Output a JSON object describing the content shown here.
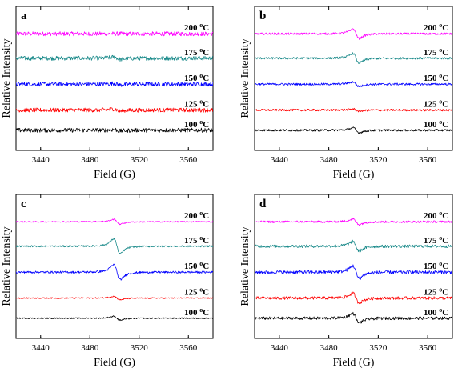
{
  "chart_data": [
    {
      "type": "line",
      "panel_label": "a",
      "xlabel": "Field (G)",
      "ylabel": "Relative Intensity",
      "xlim": [
        3420,
        3580
      ],
      "xticks": [
        3440,
        3480,
        3520,
        3560
      ],
      "x_tick_labels": [
        "3440",
        "3480",
        "3520",
        "3560"
      ],
      "grid": false,
      "series": [
        {
          "name": "200 °C",
          "label_main": "200",
          "color": "#ff00ff",
          "center": 3502,
          "amplitude": 0.0,
          "noise": 1.0
        },
        {
          "name": "175 °C",
          "label_main": "175",
          "color": "#1a8a8a",
          "center": 3502,
          "amplitude": 0.8,
          "noise": 1.0
        },
        {
          "name": "150 °C",
          "label_main": "150",
          "color": "#0000ff",
          "center": 3502,
          "amplitude": 0.6,
          "noise": 1.0
        },
        {
          "name": "125 °C",
          "label_main": "125",
          "color": "#ff0000",
          "center": 3502,
          "amplitude": 0.8,
          "noise": 1.0
        },
        {
          "name": "100 °C",
          "label_main": "100",
          "color": "#000000",
          "center": 3502,
          "amplitude": 0.5,
          "noise": 1.0
        }
      ]
    },
    {
      "type": "line",
      "panel_label": "b",
      "xlabel": "Field (G)",
      "ylabel": "Relative Intensity",
      "xlim": [
        3420,
        3580
      ],
      "xticks": [
        3440,
        3480,
        3520,
        3560
      ],
      "x_tick_labels": [
        "3440",
        "3480",
        "3520",
        "3560"
      ],
      "grid": false,
      "series": [
        {
          "name": "200 °C",
          "label_main": "200",
          "color": "#ff00ff",
          "center": 3502,
          "amplitude": 3.2,
          "noise": 0.5
        },
        {
          "name": "175 °C",
          "label_main": "175",
          "color": "#1a8a8a",
          "center": 3502,
          "amplitude": 3.2,
          "noise": 0.5
        },
        {
          "name": "150 °C",
          "label_main": "150",
          "color": "#0000ff",
          "center": 3502,
          "amplitude": 1.6,
          "noise": 0.5
        },
        {
          "name": "125 °C",
          "label_main": "125",
          "color": "#ff0000",
          "center": 3502,
          "amplitude": 0.7,
          "noise": 0.5
        },
        {
          "name": "100 °C",
          "label_main": "100",
          "color": "#000000",
          "center": 3502,
          "amplitude": 1.6,
          "noise": 0.5
        }
      ]
    },
    {
      "type": "line",
      "panel_label": "c",
      "xlabel": "Field (G)",
      "ylabel": "Relative Intensity",
      "xlim": [
        3420,
        3580
      ],
      "xticks": [
        3440,
        3480,
        3520,
        3560
      ],
      "x_tick_labels": [
        "3440",
        "3480",
        "3520",
        "3560"
      ],
      "grid": false,
      "series": [
        {
          "name": "200 °C",
          "label_main": "200",
          "color": "#ff00ff",
          "center": 3502,
          "amplitude": 1.6,
          "noise": 0.3
        },
        {
          "name": "175 °C",
          "label_main": "175",
          "color": "#1a8a8a",
          "center": 3502,
          "amplitude": 5.0,
          "noise": 0.4
        },
        {
          "name": "150 °C",
          "label_main": "150",
          "color": "#0000ff",
          "center": 3502,
          "amplitude": 5.0,
          "noise": 0.5
        },
        {
          "name": "125 °C",
          "label_main": "125",
          "color": "#ff0000",
          "center": 3502,
          "amplitude": 1.2,
          "noise": 0.3
        },
        {
          "name": "100 °C",
          "label_main": "100",
          "color": "#000000",
          "center": 3502,
          "amplitude": 1.3,
          "noise": 0.3
        }
      ]
    },
    {
      "type": "line",
      "panel_label": "d",
      "xlabel": "Field (G)",
      "ylabel": "Relative Intensity",
      "xlim": [
        3420,
        3580
      ],
      "xticks": [
        3440,
        3480,
        3520,
        3560
      ],
      "x_tick_labels": [
        "3440",
        "3480",
        "3520",
        "3560"
      ],
      "grid": false,
      "series": [
        {
          "name": "200 °C",
          "label_main": "200",
          "color": "#ff00ff",
          "center": 3502,
          "amplitude": 1.8,
          "noise": 0.5
        },
        {
          "name": "175 °C",
          "label_main": "175",
          "color": "#1a8a8a",
          "center": 3502,
          "amplitude": 3.2,
          "noise": 0.7
        },
        {
          "name": "150 °C",
          "label_main": "150",
          "color": "#0000ff",
          "center": 3502,
          "amplitude": 4.2,
          "noise": 0.8
        },
        {
          "name": "125 °C",
          "label_main": "125",
          "color": "#ff0000",
          "center": 3502,
          "amplitude": 3.2,
          "noise": 0.7
        },
        {
          "name": "100 °C",
          "label_main": "100",
          "color": "#000000",
          "center": 3502,
          "amplitude": 3.2,
          "noise": 0.7
        }
      ]
    }
  ]
}
